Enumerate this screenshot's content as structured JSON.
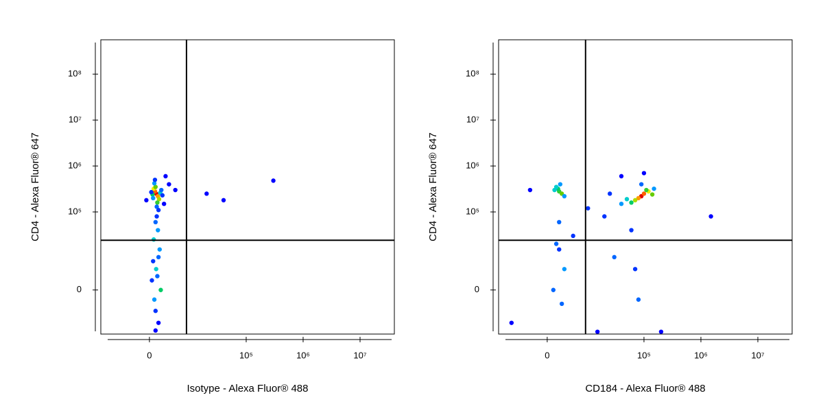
{
  "chart_data": [
    {
      "type": "scatter",
      "xlabel": "Isotype - Alexa Fluor® 488",
      "ylabel": "CD4 - Alexa Fluor® 647",
      "xscale": "biexponential",
      "yscale": "biexponential",
      "xlim": [
        -14000,
        40000000
      ],
      "ylim": [
        -18000,
        560000000
      ],
      "xticks": [
        0,
        {
          "value": 100000,
          "label": "10⁵"
        },
        {
          "value": 1000000,
          "label": "10⁶"
        },
        {
          "value": 10000000,
          "label": "10⁷"
        }
      ],
      "yticks": [
        0,
        {
          "value": 100000,
          "label": "10⁵"
        },
        {
          "value": 1000000,
          "label": "10⁶"
        },
        {
          "value": 10000000,
          "label": "10⁷"
        },
        {
          "value": 100000000,
          "label": "10⁸"
        }
      ],
      "gate_x": 8500,
      "gate_y": 24000,
      "x": [
        1100,
        900,
        1400,
        700,
        1600,
        1000,
        1300,
        500,
        1800,
        800,
        1200,
        600,
        2000,
        1500,
        900,
        300,
        2200,
        1000,
        1400,
        700,
        1700,
        1100,
        400,
        1900,
        800,
        1300,
        1000,
        600,
        1500,
        1200,
        2500,
        -500,
        2800,
        3500,
        5000,
        20000,
        40000,
        300000,
        1000,
        1500
      ],
      "y": [
        250000,
        280000,
        220000,
        320000,
        190000,
        350000,
        160000,
        240000,
        260000,
        420000,
        130000,
        200000,
        300000,
        110000,
        500000,
        270000,
        230000,
        60000,
        40000,
        25000,
        15000,
        5000,
        2000,
        0,
        -2000,
        3000,
        -5000,
        8000,
        10000,
        80000,
        150000,
        180000,
        600000,
        400000,
        300000,
        250000,
        180000,
        480000,
        -15000,
        -10000
      ],
      "colors": [
        "#e00000",
        "#ff6000",
        "#ff9900",
        "#eeee00",
        "#aadd00",
        "#66cc00",
        "#33cc33",
        "#00cc66",
        "#00cccc",
        "#0099ff",
        "#0066ff",
        "#0099ff",
        "#0066ff",
        "#0033ff",
        "#0033ff",
        "#0033ff",
        "#0033ff",
        "#0066ff",
        "#0099ff",
        "#00cccc",
        "#0099ff",
        "#00cccc",
        "#0033ff",
        "#00cc66",
        "#0099ff",
        "#0066ff",
        "#0033ff",
        "#0033ff",
        "#0066ff",
        "#0033ff",
        "#0000ff",
        "#0000ff",
        "#0000ff",
        "#0000ff",
        "#0000ff",
        "#0000ff",
        "#0000ff",
        "#0000ff",
        "#0000ff",
        "#0000ff"
      ]
    },
    {
      "type": "scatter",
      "xlabel": "CD184 - Alexa Fluor® 488",
      "ylabel": "CD4 - Alexa Fluor® 647",
      "xscale": "biexponential",
      "yscale": "biexponential",
      "xlim": [
        -14000,
        40000000
      ],
      "ylim": [
        -18000,
        560000000
      ],
      "xticks": [
        0,
        {
          "value": 100000,
          "label": "10⁵"
        },
        {
          "value": 1000000,
          "label": "10⁶"
        },
        {
          "value": 10000000,
          "label": "10⁷"
        }
      ],
      "yticks": [
        0,
        {
          "value": 100000,
          "label": "10⁵"
        },
        {
          "value": 1000000,
          "label": "10⁶"
        },
        {
          "value": 10000000,
          "label": "10⁷"
        },
        {
          "value": 100000000,
          "label": "10⁸"
        }
      ],
      "gate_x": 9000,
      "gate_y": 24000,
      "x": [
        2000,
        1800,
        2500,
        1500,
        3000,
        1200,
        2200,
        90000,
        100000,
        80000,
        120000,
        70000,
        140000,
        60000,
        110000,
        50000,
        150000,
        90000,
        40000,
        2000,
        1500,
        3000,
        2500,
        20000,
        30000,
        60000,
        80000,
        10000,
        5000,
        1000,
        -3000,
        -8000,
        40000,
        100000,
        15000,
        200000,
        1500000,
        70000,
        25000,
        2000
      ],
      "y": [
        280000,
        320000,
        250000,
        350000,
        220000,
        300000,
        400000,
        220000,
        250000,
        200000,
        280000,
        180000,
        240000,
        160000,
        300000,
        190000,
        320000,
        400000,
        150000,
        60000,
        20000,
        5000,
        -3000,
        80000,
        10000,
        40000,
        -2000,
        120000,
        30000,
        0,
        300000,
        -10000,
        600000,
        700000,
        -16000,
        -16000,
        80000,
        5000,
        250000,
        15000
      ],
      "colors": [
        "#33cc33",
        "#00cc66",
        "#66cc00",
        "#00cccc",
        "#0099ff",
        "#00cccc",
        "#0099ff",
        "#e00000",
        "#ff6000",
        "#ff9900",
        "#eeee00",
        "#aadd00",
        "#66cc00",
        "#00cc66",
        "#33cc33",
        "#00cccc",
        "#0099ff",
        "#0066ff",
        "#0099ff",
        "#0066ff",
        "#0066ff",
        "#0099ff",
        "#0066ff",
        "#0033ff",
        "#0066ff",
        "#0033ff",
        "#0066ff",
        "#0033ff",
        "#0033ff",
        "#0066ff",
        "#0000ff",
        "#0000ff",
        "#0000ff",
        "#0000ff",
        "#0000ff",
        "#0000ff",
        "#0000ff",
        "#0033ff",
        "#0033ff",
        "#0033ff"
      ]
    }
  ]
}
